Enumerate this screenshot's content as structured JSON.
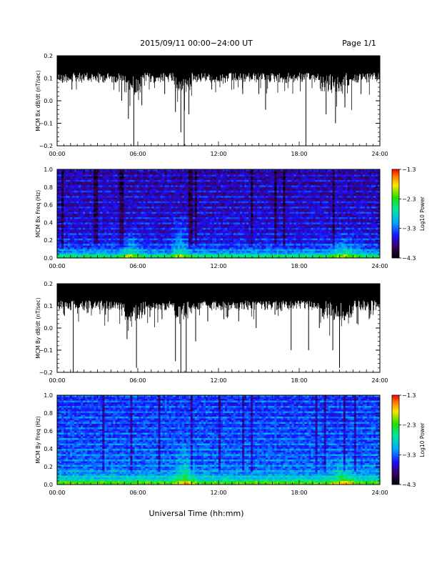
{
  "header": {
    "date_range": "2015/09/11   00:00−24:00 UT",
    "page": "Page 1/1"
  },
  "footer": {
    "xlabel": "Universal Time (hh:mm)"
  },
  "colors": {
    "ink": "#000000",
    "background": "#ffffff"
  },
  "chart_data": [
    {
      "type": "line",
      "ylabel": "MCM Bx dB/dt (nT/sec)",
      "ylim": [
        -0.2,
        0.2
      ],
      "yticks": [
        "0.2",
        "0.1",
        "0.0",
        "−0.1",
        "−0.2"
      ],
      "xlim": [
        "00:00",
        "24:00"
      ],
      "xticks": [
        "00:00",
        "06:00",
        "12:00",
        "18:00",
        "24:00"
      ],
      "background_level": 0.15,
      "spikes": [
        {
          "t": 0.4,
          "y": 0.08
        },
        {
          "t": 1.1,
          "y": 0.05
        },
        {
          "t": 2.0,
          "y": 0.09
        },
        {
          "t": 3.1,
          "y": 0.08
        },
        {
          "t": 4.8,
          "y": 0.0
        },
        {
          "t": 5.3,
          "y": -0.08
        },
        {
          "t": 5.7,
          "y": -0.2
        },
        {
          "t": 6.3,
          "y": -0.02
        },
        {
          "t": 7.2,
          "y": 0.08
        },
        {
          "t": 8.0,
          "y": 0.03
        },
        {
          "t": 8.8,
          "y": -0.05
        },
        {
          "t": 9.2,
          "y": -0.14
        },
        {
          "t": 9.45,
          "y": -0.2
        },
        {
          "t": 9.8,
          "y": -0.06
        },
        {
          "t": 11.5,
          "y": 0.05
        },
        {
          "t": 12.5,
          "y": 0.08
        },
        {
          "t": 13.8,
          "y": 0.03
        },
        {
          "t": 15.0,
          "y": 0.03
        },
        {
          "t": 15.5,
          "y": -0.04
        },
        {
          "t": 17.0,
          "y": 0.08
        },
        {
          "t": 18.5,
          "y": -0.2
        },
        {
          "t": 20.0,
          "y": -0.06
        },
        {
          "t": 20.7,
          "y": -0.1
        },
        {
          "t": 21.4,
          "y": -0.03
        },
        {
          "t": 22.6,
          "y": 0.03
        }
      ]
    },
    {
      "type": "heatmap",
      "ylabel": "MCM Bx Freq (Hz)",
      "ylim": [
        0.0,
        1.0
      ],
      "yticks": [
        "1.0",
        "0.8",
        "0.6",
        "0.4",
        "0.2",
        "0.0"
      ],
      "xlim": [
        "00:00",
        "24:00"
      ],
      "xticks": [
        "00:00",
        "06:00",
        "12:00",
        "18:00",
        "24:00"
      ],
      "colorbar": {
        "label": "Log10 Power",
        "range": [
          -4.3,
          -1.3
        ],
        "ticks": [
          "−1.3",
          "−2.3",
          "−3.3",
          "−4.3"
        ]
      },
      "enhancements": [
        {
          "t_start": 4.5,
          "t_end": 6.5,
          "f_top": 0.35
        },
        {
          "t_start": 8.3,
          "t_end": 10.0,
          "f_top": 0.55
        },
        {
          "t_start": 19.8,
          "t_end": 23.0,
          "f_top": 0.3
        }
      ]
    },
    {
      "type": "line",
      "ylabel": "MCM By dB/dt (nT/sec)",
      "ylim": [
        -0.2,
        0.2
      ],
      "yticks": [
        "0.2",
        "0.1",
        "0.0",
        "−0.1",
        "−0.2"
      ],
      "xlim": [
        "00:00",
        "24:00"
      ],
      "xticks": [
        "00:00",
        "06:00",
        "12:00",
        "18:00",
        "24:00"
      ],
      "background_level": 0.15,
      "spikes": [
        {
          "t": 0.5,
          "y": 0.06
        },
        {
          "t": 1.2,
          "y": -0.2
        },
        {
          "t": 2.3,
          "y": 0.07
        },
        {
          "t": 3.6,
          "y": 0.06
        },
        {
          "t": 5.2,
          "y": -0.05
        },
        {
          "t": 5.9,
          "y": -0.18
        },
        {
          "t": 6.9,
          "y": 0.05
        },
        {
          "t": 7.8,
          "y": 0.04
        },
        {
          "t": 8.8,
          "y": -0.15
        },
        {
          "t": 9.2,
          "y": -0.2
        },
        {
          "t": 9.6,
          "y": -0.2
        },
        {
          "t": 10.3,
          "y": -0.06
        },
        {
          "t": 11.2,
          "y": 0.03
        },
        {
          "t": 12.4,
          "y": 0.04
        },
        {
          "t": 13.5,
          "y": 0.03
        },
        {
          "t": 14.8,
          "y": 0.0
        },
        {
          "t": 16.2,
          "y": 0.06
        },
        {
          "t": 17.4,
          "y": -0.1
        },
        {
          "t": 18.7,
          "y": -0.1
        },
        {
          "t": 19.5,
          "y": 0.0
        },
        {
          "t": 20.5,
          "y": -0.1
        },
        {
          "t": 21.0,
          "y": -0.18
        },
        {
          "t": 22.3,
          "y": 0.02
        },
        {
          "t": 23.2,
          "y": 0.04
        }
      ]
    },
    {
      "type": "heatmap",
      "ylabel": "MCM By Freq (Hz)",
      "ylim": [
        0.0,
        1.0
      ],
      "yticks": [
        "1.0",
        "0.8",
        "0.6",
        "0.4",
        "0.2",
        "0.0"
      ],
      "xlim": [
        "00:00",
        "24:00"
      ],
      "xticks": [
        "00:00",
        "06:00",
        "12:00",
        "18:00",
        "24:00"
      ],
      "colorbar": {
        "label": "Log10 Power",
        "range": [
          -4.3,
          -1.3
        ],
        "ticks": [
          "−1.3",
          "−2.3",
          "−3.3",
          "−4.3"
        ]
      },
      "enhancements": [
        {
          "t_start": 8.5,
          "t_end": 10.5,
          "f_top": 0.5
        },
        {
          "t_start": 20.0,
          "t_end": 22.5,
          "f_top": 0.35
        }
      ]
    }
  ]
}
